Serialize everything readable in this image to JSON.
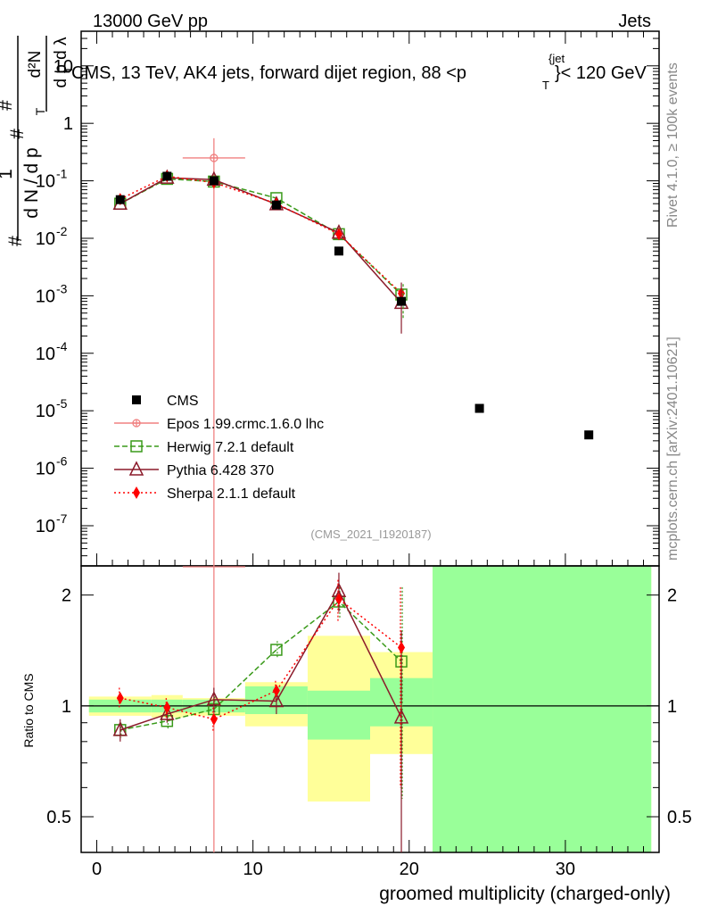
{
  "header": {
    "left": "13000 GeV pp",
    "right": "Jets",
    "title": "CMS, 13 TeV, AK4 jets, forward dijet region, 88 <p",
    "title_sup": "{jet",
    "title_sub": "T",
    "title_end": "}< 120 GeV"
  },
  "side": {
    "rivet": "Rivet 4.1.0, ≥ 100k events",
    "mcplots": "mcplots.cern.ch [arXiv:2401.10621]"
  },
  "analysis_id": "(CMS_2021_I1920187)",
  "colors": {
    "cms": "#000000",
    "epos": "#f08080",
    "herwig": "#3a9a1a",
    "pythia": "#8b1a2a",
    "sherpa": "#ff0000",
    "band_inner": "#99ff99",
    "band_outer": "#ffff99"
  },
  "legend": [
    {
      "key": "cms",
      "label": "CMS"
    },
    {
      "key": "epos",
      "label": "Epos 1.99.crmc.1.6.0 lhc"
    },
    {
      "key": "herwig",
      "label": "Herwig 7.2.1 default"
    },
    {
      "key": "pythia",
      "label": "Pythia 6.428 370"
    },
    {
      "key": "sherpa",
      "label": "Sherpa 2.1.1 default"
    }
  ],
  "chart_data": {
    "type": "line",
    "xlabel": "groomed multiplicity (charged-only)",
    "ylabel_main": "1/N dN/dλ (# / d pT d λ)",
    "ylabel_ratio": "Ratio to CMS",
    "xlim": [
      -1,
      36
    ],
    "main_ylim": [
      2e-08,
      40
    ],
    "ratio_ylim": [
      0.4,
      2.4
    ],
    "x_ticks": [
      0,
      10,
      20,
      30
    ],
    "main_y_ticks": [
      {
        "v": 1e-07,
        "label": "10",
        "exp": "-7"
      },
      {
        "v": 1e-06,
        "label": "10",
        "exp": "-6"
      },
      {
        "v": 1e-05,
        "label": "10",
        "exp": "-5"
      },
      {
        "v": 0.0001,
        "label": "10",
        "exp": "-4"
      },
      {
        "v": 0.001,
        "label": "10",
        "exp": "-3"
      },
      {
        "v": 0.01,
        "label": "10",
        "exp": "-2"
      },
      {
        "v": 0.1,
        "label": "10",
        "exp": "-1"
      },
      {
        "v": 1,
        "label": "1",
        "exp": ""
      },
      {
        "v": 10,
        "label": "10",
        "exp": ""
      }
    ],
    "ratio_y_ticks": [
      {
        "v": 0.5,
        "label": "0.5"
      },
      {
        "v": 1,
        "label": "1"
      },
      {
        "v": 2,
        "label": "2"
      }
    ],
    "cms": {
      "x": [
        1.5,
        4.5,
        7.5,
        11.5,
        15.5,
        19.5,
        24.5,
        31.5
      ],
      "y": [
        0.047,
        0.12,
        0.1,
        0.038,
        0.006,
        0.0008,
        1.1e-05,
        3.8e-06
      ]
    },
    "bins": [
      {
        "x0": -0.5,
        "x1": 3.5,
        "inner": [
          0.96,
          1.04
        ],
        "outer": [
          0.94,
          1.06
        ]
      },
      {
        "x0": 3.5,
        "x1": 5.5,
        "inner": [
          0.96,
          1.04
        ],
        "outer": [
          0.93,
          1.07
        ]
      },
      {
        "x0": 5.5,
        "x1": 9.5,
        "inner": [
          0.96,
          1.04
        ],
        "outer": [
          0.94,
          1.05
        ]
      },
      {
        "x0": 9.5,
        "x1": 13.5,
        "inner": [
          0.95,
          1.13
        ],
        "outer": [
          0.88,
          1.16
        ]
      },
      {
        "x0": 13.5,
        "x1": 17.5,
        "inner": [
          0.81,
          1.1
        ],
        "outer": [
          0.55,
          1.55
        ]
      },
      {
        "x0": 17.5,
        "x1": 21.5,
        "inner": [
          0.88,
          1.19
        ],
        "outer": [
          0.74,
          1.4
        ]
      },
      {
        "x0": 21.5,
        "x1": 35.5,
        "inner": [
          0.3,
          2.5
        ],
        "outer": [
          0.3,
          2.5
        ]
      }
    ],
    "series": [
      {
        "name": "Epos 1.99.crmc.1.6.0 lhc",
        "key": "epos",
        "x": [
          7.5
        ],
        "y": [
          0.25
        ],
        "err_lo": [
          1e-09
        ],
        "err_hi": [
          0.55
        ],
        "x_err": 2.0,
        "ratio": [
          2.5
        ],
        "ratio_lo": [
          0.3
        ],
        "ratio_hi": [
          2.5
        ]
      },
      {
        "name": "Herwig 7.2.1 default",
        "key": "herwig",
        "x": [
          1.5,
          4.5,
          7.5,
          11.5,
          15.5,
          19.5
        ],
        "y": [
          0.04,
          0.108,
          0.097,
          0.05,
          0.0118,
          0.00105
        ],
        "ratio": [
          0.86,
          0.91,
          0.98,
          1.42,
          1.92,
          1.32
        ],
        "ratio_lo": [
          0.82,
          0.86,
          0.9,
          1.35,
          1.72,
          0.56
        ],
        "ratio_hi": [
          0.9,
          0.96,
          1.06,
          1.5,
          2.1,
          2.1
        ]
      },
      {
        "name": "Pythia 6.428 370",
        "key": "pythia",
        "x": [
          1.5,
          4.5,
          7.5,
          11.5,
          15.5,
          19.5
        ],
        "y": [
          0.04,
          0.113,
          0.105,
          0.039,
          0.0125,
          0.00075
        ],
        "ratio": [
          0.86,
          0.95,
          1.04,
          1.03,
          2.05,
          0.93
        ],
        "ratio_lo": [
          0.8,
          0.9,
          0.96,
          0.95,
          1.8,
          0.3
        ],
        "ratio_hi": [
          0.92,
          1.0,
          1.12,
          1.11,
          2.3,
          1.6
        ]
      },
      {
        "name": "Sherpa 2.1.1 default",
        "key": "sherpa",
        "x": [
          1.5,
          4.5,
          7.5,
          11.5,
          15.5,
          19.5
        ],
        "y": [
          0.048,
          0.12,
          0.093,
          0.04,
          0.0118,
          0.0011
        ],
        "ratio": [
          1.05,
          0.99,
          0.92,
          1.1,
          1.95,
          1.44
        ],
        "ratio_lo": [
          0.98,
          0.93,
          0.85,
          1.04,
          1.7,
          0.6
        ],
        "ratio_hi": [
          1.12,
          1.05,
          0.99,
          1.17,
          2.2,
          2.1
        ]
      }
    ]
  }
}
